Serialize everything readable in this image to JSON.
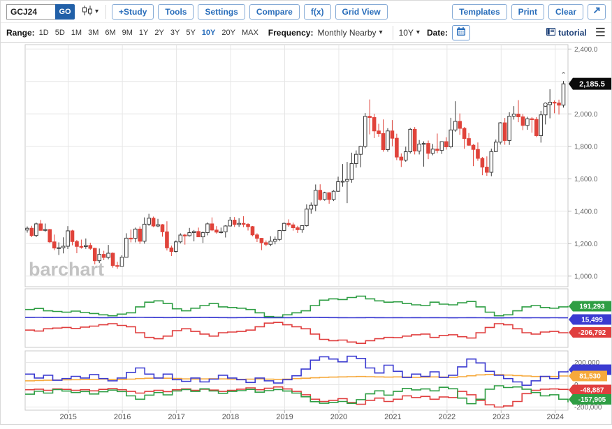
{
  "toolbar": {
    "symbol_value": "GCJ24",
    "go_label": "GO",
    "study_buttons": [
      "+Study",
      "Tools",
      "Settings",
      "Compare",
      "f(x)",
      "Grid View"
    ],
    "right_buttons": [
      "Templates",
      "Print",
      "Clear"
    ]
  },
  "controls": {
    "range_label": "Range:",
    "ranges": [
      "1D",
      "5D",
      "1M",
      "3M",
      "6M",
      "9M",
      "1Y",
      "2Y",
      "3Y",
      "5Y",
      "10Y",
      "20Y",
      "MAX"
    ],
    "active_range": "10Y",
    "frequency_label": "Frequency:",
    "frequency_value": "Monthly Nearby",
    "period_value": "10Y",
    "date_label": "Date:",
    "tutorial_label": "tutorial"
  },
  "colors": {
    "accent_blue": "#2a6ebb",
    "go_bg": "#2160a8",
    "candle_up_stroke": "#3a3a3a",
    "candle_down": "#e0433a",
    "line_green": "#2f9e44",
    "line_red": "#e03e3e",
    "line_blue": "#3b3bd1",
    "line_orange": "#f6a93b",
    "tag_black": "#0a0a0a",
    "grid": "#e6e6e6",
    "panel_border": "#c9c9c9",
    "axis_text": "#666666",
    "watermark": "#c3c3c3"
  },
  "chart_data": {
    "type": "candlestick",
    "symbol": "GCJ24",
    "frequency": "Monthly Nearby",
    "range": "10Y",
    "last_price_label": "2,185.5",
    "last_price": 2185.5,
    "start_month": "2014-04",
    "watermark": "barchart",
    "y_axis": {
      "min": 1000,
      "max": 2400,
      "tick_step": 200,
      "tick_labels": [
        "2,400.0",
        "2,200.0",
        "2,000.0",
        "1,800.0",
        "1,600.0",
        "1,400.0",
        "1,200.0",
        "1,000.0"
      ]
    },
    "x_tick_years": [
      "2015",
      "2016",
      "2017",
      "2018",
      "2019",
      "2020",
      "2021",
      "2022",
      "2023",
      "2024"
    ],
    "marker_month_index": 115,
    "ohlc": [
      [
        1284,
        1306,
        1268,
        1295
      ],
      [
        1295,
        1310,
        1240,
        1250
      ],
      [
        1250,
        1330,
        1240,
        1322
      ],
      [
        1322,
        1346,
        1280,
        1282
      ],
      [
        1282,
        1324,
        1273,
        1287
      ],
      [
        1287,
        1291,
        1204,
        1211
      ],
      [
        1211,
        1256,
        1160,
        1173
      ],
      [
        1173,
        1208,
        1130,
        1175
      ],
      [
        1175,
        1239,
        1140,
        1184
      ],
      [
        1184,
        1308,
        1167,
        1279
      ],
      [
        1279,
        1285,
        1190,
        1213
      ],
      [
        1213,
        1223,
        1141,
        1183
      ],
      [
        1183,
        1225,
        1169,
        1182
      ],
      [
        1182,
        1232,
        1168,
        1189
      ],
      [
        1189,
        1206,
        1162,
        1171
      ],
      [
        1171,
        1175,
        1072,
        1095
      ],
      [
        1095,
        1170,
        1080,
        1134
      ],
      [
        1134,
        1156,
        1098,
        1115
      ],
      [
        1115,
        1192,
        1104,
        1141
      ],
      [
        1141,
        1146,
        1052,
        1065
      ],
      [
        1065,
        1088,
        1045,
        1060
      ],
      [
        1060,
        1128,
        1060,
        1116
      ],
      [
        1116,
        1264,
        1116,
        1234
      ],
      [
        1234,
        1287,
        1208,
        1233
      ],
      [
        1233,
        1299,
        1208,
        1290
      ],
      [
        1290,
        1306,
        1199,
        1215
      ],
      [
        1215,
        1362,
        1200,
        1320
      ],
      [
        1320,
        1384,
        1310,
        1357
      ],
      [
        1357,
        1367,
        1302,
        1309
      ],
      [
        1309,
        1353,
        1302,
        1317
      ],
      [
        1317,
        1321,
        1243,
        1273
      ],
      [
        1273,
        1338,
        1158,
        1174
      ],
      [
        1174,
        1188,
        1124,
        1152
      ],
      [
        1152,
        1220,
        1146,
        1211
      ],
      [
        1211,
        1264,
        1202,
        1253
      ],
      [
        1253,
        1261,
        1194,
        1249
      ],
      [
        1249,
        1297,
        1244,
        1268
      ],
      [
        1268,
        1284,
        1214,
        1275
      ],
      [
        1275,
        1299,
        1240,
        1242
      ],
      [
        1242,
        1275,
        1204,
        1268
      ],
      [
        1268,
        1331,
        1251,
        1322
      ],
      [
        1322,
        1362,
        1277,
        1284
      ],
      [
        1284,
        1308,
        1262,
        1271
      ],
      [
        1271,
        1299,
        1263,
        1273
      ],
      [
        1273,
        1314,
        1238,
        1309
      ],
      [
        1309,
        1365,
        1306,
        1345
      ],
      [
        1345,
        1364,
        1303,
        1318
      ],
      [
        1318,
        1357,
        1303,
        1325
      ],
      [
        1325,
        1369,
        1302,
        1319
      ],
      [
        1319,
        1326,
        1281,
        1305
      ],
      [
        1305,
        1309,
        1246,
        1254
      ],
      [
        1254,
        1264,
        1210,
        1233
      ],
      [
        1233,
        1235,
        1160,
        1206
      ],
      [
        1206,
        1220,
        1184,
        1196
      ],
      [
        1196,
        1246,
        1184,
        1215
      ],
      [
        1215,
        1244,
        1196,
        1226
      ],
      [
        1226,
        1284,
        1216,
        1281
      ],
      [
        1281,
        1331,
        1277,
        1325
      ],
      [
        1325,
        1350,
        1305,
        1316
      ],
      [
        1316,
        1330,
        1280,
        1298
      ],
      [
        1298,
        1310,
        1266,
        1286
      ],
      [
        1286,
        1311,
        1267,
        1311
      ],
      [
        1311,
        1442,
        1305,
        1413
      ],
      [
        1413,
        1454,
        1384,
        1437
      ],
      [
        1437,
        1565,
        1400,
        1529
      ],
      [
        1529,
        1566,
        1465,
        1472
      ],
      [
        1472,
        1520,
        1465,
        1514
      ],
      [
        1514,
        1517,
        1446,
        1472
      ],
      [
        1472,
        1530,
        1463,
        1523
      ],
      [
        1523,
        1613,
        1520,
        1582
      ],
      [
        1582,
        1691,
        1551,
        1585
      ],
      [
        1585,
        1704,
        1450,
        1596
      ],
      [
        1596,
        1761,
        1576,
        1694
      ],
      [
        1694,
        1775,
        1668,
        1751
      ],
      [
        1751,
        1804,
        1671,
        1800
      ],
      [
        1800,
        2005,
        1789,
        1985
      ],
      [
        1985,
        2089,
        1874,
        1978
      ],
      [
        1978,
        2001,
        1851,
        1895
      ],
      [
        1895,
        1939,
        1859,
        1879
      ],
      [
        1879,
        1966,
        1767,
        1780
      ],
      [
        1780,
        1912,
        1767,
        1895
      ],
      [
        1895,
        1962,
        1800,
        1850
      ],
      [
        1850,
        1878,
        1715,
        1734
      ],
      [
        1734,
        1756,
        1673,
        1715
      ],
      [
        1715,
        1798,
        1705,
        1767
      ],
      [
        1767,
        1913,
        1756,
        1905
      ],
      [
        1905,
        1919,
        1750,
        1771
      ],
      [
        1771,
        1839,
        1750,
        1814
      ],
      [
        1814,
        1831,
        1675,
        1818
      ],
      [
        1818,
        1836,
        1721,
        1757
      ],
      [
        1757,
        1815,
        1745,
        1783
      ],
      [
        1783,
        1879,
        1758,
        1775
      ],
      [
        1775,
        1830,
        1753,
        1829
      ],
      [
        1829,
        1856,
        1780,
        1797
      ],
      [
        1797,
        1976,
        1788,
        1901
      ],
      [
        1901,
        2078,
        1890,
        1954
      ],
      [
        1954,
        2003,
        1871,
        1911
      ],
      [
        1911,
        1919,
        1785,
        1848
      ],
      [
        1848,
        1882,
        1803,
        1807
      ],
      [
        1807,
        1814,
        1678,
        1781
      ],
      [
        1781,
        1824,
        1711,
        1726
      ],
      [
        1726,
        1735,
        1622,
        1672
      ],
      [
        1672,
        1738,
        1618,
        1640
      ],
      [
        1640,
        1786,
        1616,
        1768
      ],
      [
        1768,
        1842,
        1765,
        1826
      ],
      [
        1826,
        1949,
        1811,
        1945
      ],
      [
        1945,
        1975,
        1810,
        1836
      ],
      [
        1836,
        2010,
        1809,
        1986
      ],
      [
        1986,
        2048,
        1965,
        1999
      ],
      [
        1999,
        2085,
        1949,
        1982
      ],
      [
        1982,
        2000,
        1900,
        1929
      ],
      [
        1929,
        1982,
        1902,
        1970
      ],
      [
        1970,
        1980,
        1884,
        1966
      ],
      [
        1966,
        1980,
        1857,
        1866
      ],
      [
        1866,
        2019,
        1823,
        1994
      ],
      [
        1994,
        2067,
        1935,
        2057
      ],
      [
        2057,
        2152,
        1973,
        2072
      ],
      [
        2072,
        2083,
        2004,
        2067
      ],
      [
        2067,
        2088,
        1996,
        2054
      ],
      [
        2054,
        2203,
        2039,
        2185.5
      ]
    ],
    "panels": [
      {
        "name": "indicator-panel-mid",
        "unit": "contracts, thousands",
        "series": [
          {
            "id": "green-line",
            "color_key": "line_green",
            "tag": "191,293",
            "values_k": [
              140,
              155,
              120,
              110,
              100,
              115,
              95,
              80,
              60,
              45,
              70,
              90,
              180,
              250,
              270,
              230,
              150,
              120,
              160,
              200,
              230,
              180,
              170,
              160,
              140,
              90,
              35,
              25,
              60,
              90,
              120,
              200,
              280,
              300,
              290,
              320,
              340,
              300,
              270,
              250,
              255,
              230,
              210,
              200,
              250,
              220,
              210,
              240,
              260,
              180,
              100,
              45,
              60,
              120,
              180,
              200,
              170,
              160,
              180,
              191
            ]
          },
          {
            "id": "red-line",
            "color_key": "line_red",
            "tag": "-206,792",
            "values_k": [
              -170,
              -185,
              -150,
              -140,
              -130,
              -145,
              -125,
              -110,
              -90,
              -75,
              -100,
              -120,
              -210,
              -280,
              -300,
              -260,
              -180,
              -150,
              -190,
              -230,
              -260,
              -210,
              -200,
              -190,
              -170,
              -120,
              -65,
              -55,
              -90,
              -120,
              -150,
              -230,
              -310,
              -330,
              -320,
              -350,
              -370,
              -330,
              -300,
              -280,
              -285,
              -260,
              -240,
              -230,
              -280,
              -250,
              -240,
              -270,
              -290,
              -210,
              -130,
              -75,
              -90,
              -150,
              -210,
              -230,
              -200,
              -190,
              -210,
              -207
            ]
          },
          {
            "id": "blue-line",
            "color_key": "line_blue",
            "tag": "15,499",
            "values_k": [
              20,
              21,
              19,
              20,
              20,
              20,
              19,
              18,
              17,
              18,
              19,
              20,
              21,
              20,
              19,
              18,
              19,
              18,
              19,
              20,
              19,
              18,
              17,
              18,
              19,
              18,
              17,
              16,
              17,
              18,
              19,
              20,
              19,
              18,
              17,
              16,
              17,
              18,
              17,
              16,
              17,
              16,
              17,
              16,
              17,
              16,
              15,
              16,
              17,
              16,
              15,
              14,
              15,
              16,
              15,
              16,
              15,
              16,
              15,
              15
            ]
          }
        ]
      },
      {
        "name": "indicator-panel-bottom",
        "unit": "contracts, thousands",
        "axis_labels": [
          "200,000",
          "0",
          "-200,000"
        ],
        "axis_values_k": [
          200,
          0,
          -200
        ],
        "series": [
          {
            "id": "red-line",
            "color_key": "line_red",
            "tag": "-48,887",
            "values_k": [
              -45,
              -40,
              -50,
              -38,
              -42,
              -50,
              -45,
              -55,
              -42,
              -35,
              -45,
              -60,
              -75,
              -60,
              -50,
              -62,
              -45,
              -38,
              -50,
              -40,
              -48,
              -60,
              -50,
              -40,
              -28,
              -45,
              -32,
              -20,
              -38,
              -60,
              -90,
              -130,
              -150,
              -140,
              -125,
              -160,
              -175,
              -140,
              -120,
              -150,
              -130,
              -100,
              -115,
              -105,
              -130,
              -110,
              -115,
              -60,
              -90,
              -140,
              -180,
              -200,
              -190,
              -150,
              -80,
              -50,
              -40,
              -38,
              -42,
              -49
            ]
          },
          {
            "id": "green-line",
            "color_key": "line_green",
            "tag": "-157,905",
            "values_k": [
              -85,
              -58,
              -75,
              -44,
              -57,
              -70,
              -61,
              -83,
              -63,
              -48,
              -61,
              -100,
              -130,
              -93,
              -70,
              -91,
              -56,
              -44,
              -60,
              -37,
              -56,
              -77,
              -60,
              -53,
              -42,
              -67,
              -53,
              -43,
              -57,
              -75,
              -108,
              -152,
              -166,
              -158,
              -150,
              -167,
              -134,
              -82,
              -55,
              -93,
              -60,
              -33,
              -46,
              -38,
              -55,
              -23,
              -36,
              -120,
              -170,
              -130,
              -40,
              -10,
              -25,
              -20,
              -40,
              -70,
              -100,
              -90,
              -130,
              -158
            ]
          },
          {
            "id": "orange-line",
            "color_key": "line_orange",
            "tag": "81,530",
            "values_k": [
              35,
              38,
              40,
              42,
              44,
              45,
              46,
              48,
              50,
              48,
              46,
              50,
              55,
              58,
              60,
              58,
              56,
              52,
              50,
              52,
              54,
              52,
              50,
              48,
              50,
              52,
              50,
              48,
              50,
              55,
              58,
              62,
              66,
              68,
              70,
              72,
              74,
              72,
              70,
              68,
              70,
              68,
              66,
              68,
              70,
              68,
              66,
              72,
              80,
              88,
              92,
              90,
              86,
              82,
              78,
              74,
              72,
              74,
              78,
              81.5
            ]
          },
          {
            "id": "blue-line",
            "color_key": "line_blue",
            "tag": "",
            "values_k": [
              95,
              60,
              85,
              40,
              55,
              75,
              60,
              90,
              55,
              35,
              60,
              110,
              150,
              95,
              60,
              95,
              45,
              30,
              60,
              25,
              50,
              85,
              60,
              45,
              20,
              60,
              35,
              15,
              45,
              80,
              140,
              220,
              250,
              230,
              205,
              255,
              235,
              150,
              105,
              175,
              120,
              65,
              95,
              75,
              115,
              65,
              85,
              160,
              230,
              195,
              120,
              85,
              55,
              25,
              -5,
              35,
              75,
              55,
              115,
              125
            ]
          }
        ]
      }
    ]
  }
}
